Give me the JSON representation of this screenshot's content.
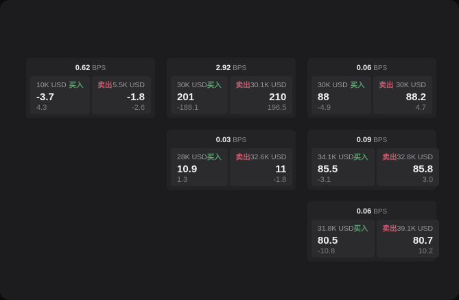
{
  "labels": {
    "bps_suffix": "BPS",
    "buy": "买入",
    "sell": "卖出"
  },
  "colors": {
    "buy": "#55a06c",
    "sell": "#c55a6b",
    "value": "#f0f0f1",
    "muted": "#7e7e82",
    "panel": "#1c1c1e",
    "card": "#232325",
    "pane": "#2b2b2d"
  },
  "cards": [
    {
      "row": 1,
      "col": 1,
      "bps": "0.62",
      "buy": {
        "amount": "10K USD",
        "value": "-3.7",
        "sub": "4.3"
      },
      "sell": {
        "amount": "5.5K USD",
        "value": "-1.8",
        "sub": "-2.6"
      }
    },
    {
      "row": 1,
      "col": 2,
      "bps": "2.92",
      "buy": {
        "amount": "30K USD",
        "value": "201",
        "sub": "-188.1"
      },
      "sell": {
        "amount": "30.1K USD",
        "value": "210",
        "sub": "196.5"
      }
    },
    {
      "row": 1,
      "col": 3,
      "bps": "0.06",
      "buy": {
        "amount": "30K USD",
        "value": "88",
        "sub": "-4.9"
      },
      "sell": {
        "amount": "30K USD",
        "value": "88.2",
        "sub": "4.7"
      }
    },
    {
      "row": 2,
      "col": 2,
      "bps": "0.03",
      "buy": {
        "amount": "28K USD",
        "value": "10.9",
        "sub": "1.3"
      },
      "sell": {
        "amount": "32.6K USD",
        "value": "11",
        "sub": "-1.8"
      }
    },
    {
      "row": 2,
      "col": 3,
      "bps": "0.09",
      "buy": {
        "amount": "34.1K USD",
        "value": "85.5",
        "sub": "-3.1"
      },
      "sell": {
        "amount": "32.8K USD",
        "value": "85.8",
        "sub": "3.0"
      }
    },
    {
      "row": 3,
      "col": 3,
      "bps": "0.06",
      "buy": {
        "amount": "31.8K USD",
        "value": "80.5",
        "sub": "-10.8"
      },
      "sell": {
        "amount": "39.1K USD",
        "value": "80.7",
        "sub": "10.2"
      }
    }
  ]
}
